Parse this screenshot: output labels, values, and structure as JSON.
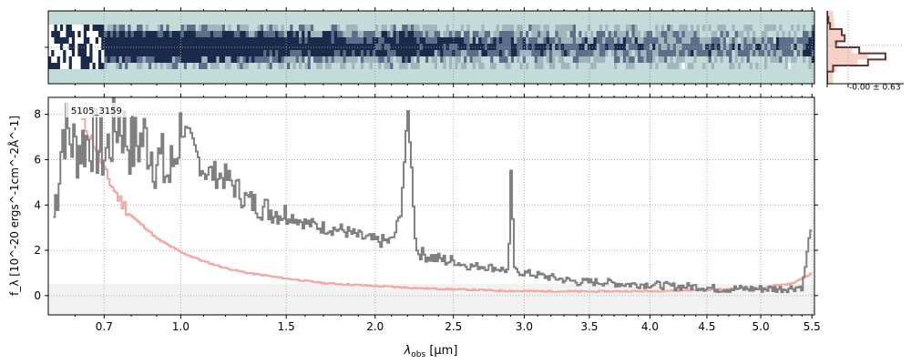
{
  "chart_data": [
    {
      "type": "heatmap",
      "panel": "2d-spectrum",
      "x_domain": [
        0.515,
        5.525
      ],
      "x_scale": "sqrt",
      "grid": true,
      "colors": {
        "background": "#c3dbd9",
        "flux": "#1b2a4a"
      },
      "trace_profile": [
        0.15,
        0.45,
        0.8,
        1.0,
        0.75,
        0.35,
        0.1
      ]
    },
    {
      "type": "line",
      "panel": "spatial-profile",
      "annotation": "-0.00 ± 0.63",
      "colors": {
        "profile": "#5a3a32",
        "shade": "#f6c6b8"
      },
      "profile": [
        0.0,
        0.02,
        0.05,
        0.25,
        0.3,
        0.15,
        0.55,
        1.0,
        0.7,
        0.1,
        0.0,
        0.0
      ]
    },
    {
      "type": "line",
      "panel": "1d-spectrum",
      "label": "5105_3159",
      "xlabel_main": "λ",
      "xlabel_sub": "obs",
      "xlabel_unit": " [μm]",
      "ylabel": "f_λ [10^-20 ergs^-1cm^-2Å^-1]",
      "xlim": [
        0.515,
        5.525
      ],
      "x_scale": "sqrt",
      "ylim": [
        -0.85,
        8.75
      ],
      "xticks": [
        0.7,
        1.0,
        1.5,
        2.0,
        2.5,
        3.0,
        3.5,
        4.0,
        4.5,
        5.0,
        5.5
      ],
      "xtick_labels": [
        "0.7",
        "1.0",
        "1.5",
        "2.0",
        "2.5",
        "3.0",
        "3.5",
        "4.0",
        "4.5",
        "5.0",
        "5.5"
      ],
      "yticks": [
        0,
        2,
        4,
        6,
        8
      ],
      "grid": true,
      "series": [
        {
          "role": "data",
          "color": "#808080",
          "x": [
            0.53,
            0.56,
            0.6,
            0.65,
            0.7,
            0.75,
            0.8,
            0.85,
            0.9,
            0.95,
            1.0,
            1.1,
            1.2,
            1.3,
            1.4,
            1.5,
            1.6,
            1.7,
            1.8,
            1.9,
            2.0,
            2.1,
            2.15,
            2.2,
            2.25,
            2.3,
            2.4,
            2.5,
            2.6,
            2.7,
            2.8,
            2.88,
            2.9,
            2.92,
            3.0,
            3.2,
            3.4,
            3.6,
            3.8,
            4.0,
            4.2,
            4.4,
            4.6,
            4.8,
            5.0,
            5.2,
            5.4,
            5.5
          ],
          "y": [
            3.5,
            7.5,
            6.5,
            7.0,
            6.2,
            7.8,
            6.5,
            7.0,
            6.0,
            5.2,
            7.5,
            5.5,
            5.2,
            4.2,
            3.8,
            3.6,
            3.2,
            3.0,
            2.9,
            2.6,
            2.4,
            2.4,
            3.5,
            8.2,
            2.0,
            1.8,
            1.6,
            1.5,
            1.3,
            1.3,
            1.2,
            1.1,
            6.0,
            1.1,
            1.0,
            0.8,
            0.6,
            0.6,
            0.5,
            0.5,
            0.4,
            0.4,
            0.3,
            0.3,
            0.3,
            0.3,
            0.4,
            3.6
          ]
        },
        {
          "role": "model",
          "color": "#f4a7a0",
          "x": [
            0.62,
            0.66,
            0.7,
            0.75,
            0.8,
            0.9,
            1.0,
            1.1,
            1.2,
            1.3,
            1.5,
            1.7,
            2.0,
            2.3,
            2.5,
            2.8,
            3.0,
            3.5,
            4.0,
            4.5,
            5.0,
            5.3,
            5.5
          ],
          "y": [
            7.7,
            6.8,
            5.4,
            4.3,
            3.5,
            2.5,
            1.9,
            1.5,
            1.2,
            1.0,
            0.75,
            0.55,
            0.42,
            0.32,
            0.28,
            0.22,
            0.2,
            0.18,
            0.2,
            0.25,
            0.35,
            0.55,
            1.0
          ]
        }
      ]
    }
  ]
}
